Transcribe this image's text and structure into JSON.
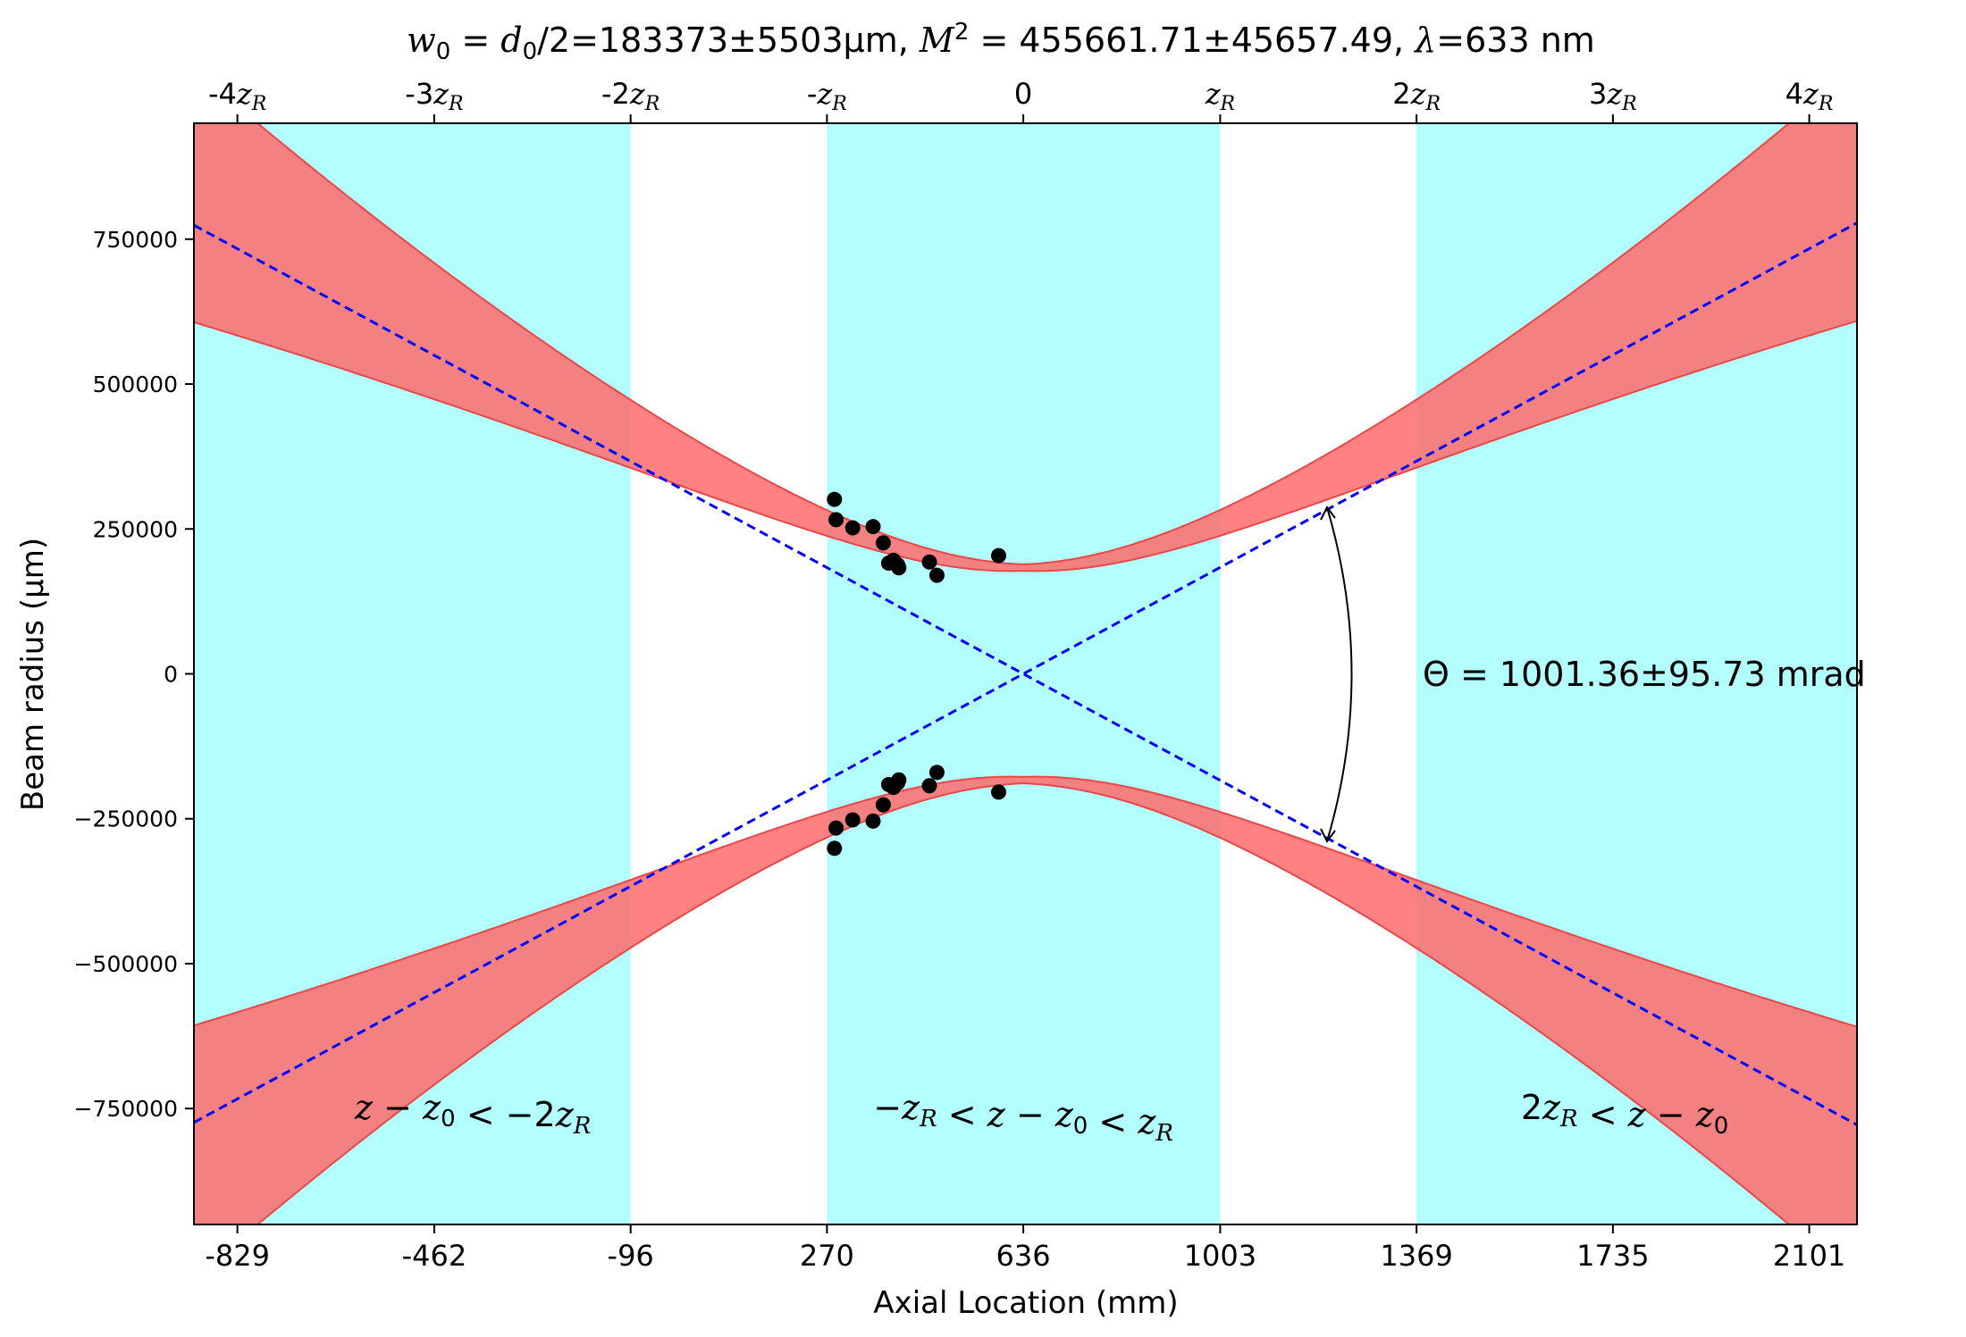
{
  "chart_data": {
    "type": "line",
    "title_parts": [
      {
        "t": "w",
        "i": true
      },
      {
        "t": "0",
        "sub": true
      },
      {
        "t": " = "
      },
      {
        "t": "d",
        "i": true
      },
      {
        "t": "0",
        "sub": true
      },
      {
        "t": "/2=183373±5503µm,  "
      },
      {
        "t": "M",
        "i": true
      },
      {
        "t": "2",
        "sup": true
      },
      {
        "t": " = 455661.71±45657.49,  "
      },
      {
        "t": "λ",
        "i": true
      },
      {
        "t": "=633 nm"
      }
    ],
    "xlabel": "Axial Location (mm)",
    "ylabel": "Beam radius (µm)",
    "xlim": [
      -910,
      2190
    ],
    "ylim": [
      -950000,
      950000
    ],
    "x_ticks": [
      -829,
      -462,
      -96,
      270,
      636,
      1003,
      1369,
      1735,
      2101
    ],
    "x_tick_labels": [
      "-829",
      "-462",
      "-96",
      "270",
      "636",
      "1003",
      "1369",
      "1735",
      "2101"
    ],
    "y_ticks": [
      -750000,
      -500000,
      -250000,
      0,
      250000,
      500000,
      750000
    ],
    "y_tick_labels": [
      "−750000",
      "−500000",
      "−250000",
      "0",
      "250000",
      "500000",
      "750000"
    ],
    "top_ticks": [
      -829,
      -462,
      -96,
      270,
      636,
      1003,
      1369,
      1735,
      2101
    ],
    "top_tick_labels": [
      {
        "pre": "-4",
        "z": true
      },
      {
        "pre": "-3",
        "z": true
      },
      {
        "pre": "-2",
        "z": true
      },
      {
        "pre": "-",
        "z": true
      },
      {
        "pre": "0",
        "z": false
      },
      {
        "pre": "",
        "z": true
      },
      {
        "pre": "2",
        "z": true
      },
      {
        "pre": "3",
        "z": true
      },
      {
        "pre": "4",
        "z": true
      }
    ],
    "regions": [
      {
        "from": -910,
        "to": -96,
        "color": "#b3ffff"
      },
      {
        "from": 270,
        "to": 1003,
        "color": "#b3ffff"
      },
      {
        "from": 1369,
        "to": 2190,
        "color": "#b3ffff"
      }
    ],
    "region_labels": [
      {
        "text": "z − z₀ < −2z_R",
        "x": -390,
        "y": -750000
      },
      {
        "text": "−z_R < z − z₀ < z_R",
        "x": 636,
        "y": -750000
      },
      {
        "text": "2z_R < z − z₀",
        "x": 1757,
        "y": -750000
      }
    ],
    "fit": {
      "z0": 636,
      "zR": 366.5,
      "w0": 183373,
      "w0_err": 5503,
      "asymptote_slope": 500.68
    },
    "series": [
      {
        "name": "",
        "type": "scatter",
        "points": [
          [
            284,
            301000
          ],
          [
            287,
            266000
          ],
          [
            318,
            252000
          ],
          [
            356,
            254000
          ],
          [
            375,
            226000
          ],
          [
            385,
            191000
          ],
          [
            394,
            196000
          ],
          [
            402,
            188000
          ],
          [
            404,
            183000
          ],
          [
            461,
            193000
          ],
          [
            475,
            170000
          ],
          [
            590,
            204000
          ]
        ]
      }
    ],
    "annotation": "Θ  = 1001.36±95.73 mrad",
    "colors": {
      "region": "#b3ffff",
      "band_fill": "#ff6b6b",
      "band_edge": "#e84848",
      "band_dark": "#c48383",
      "asymptote": "#0000ff",
      "points": "#000000"
    }
  }
}
